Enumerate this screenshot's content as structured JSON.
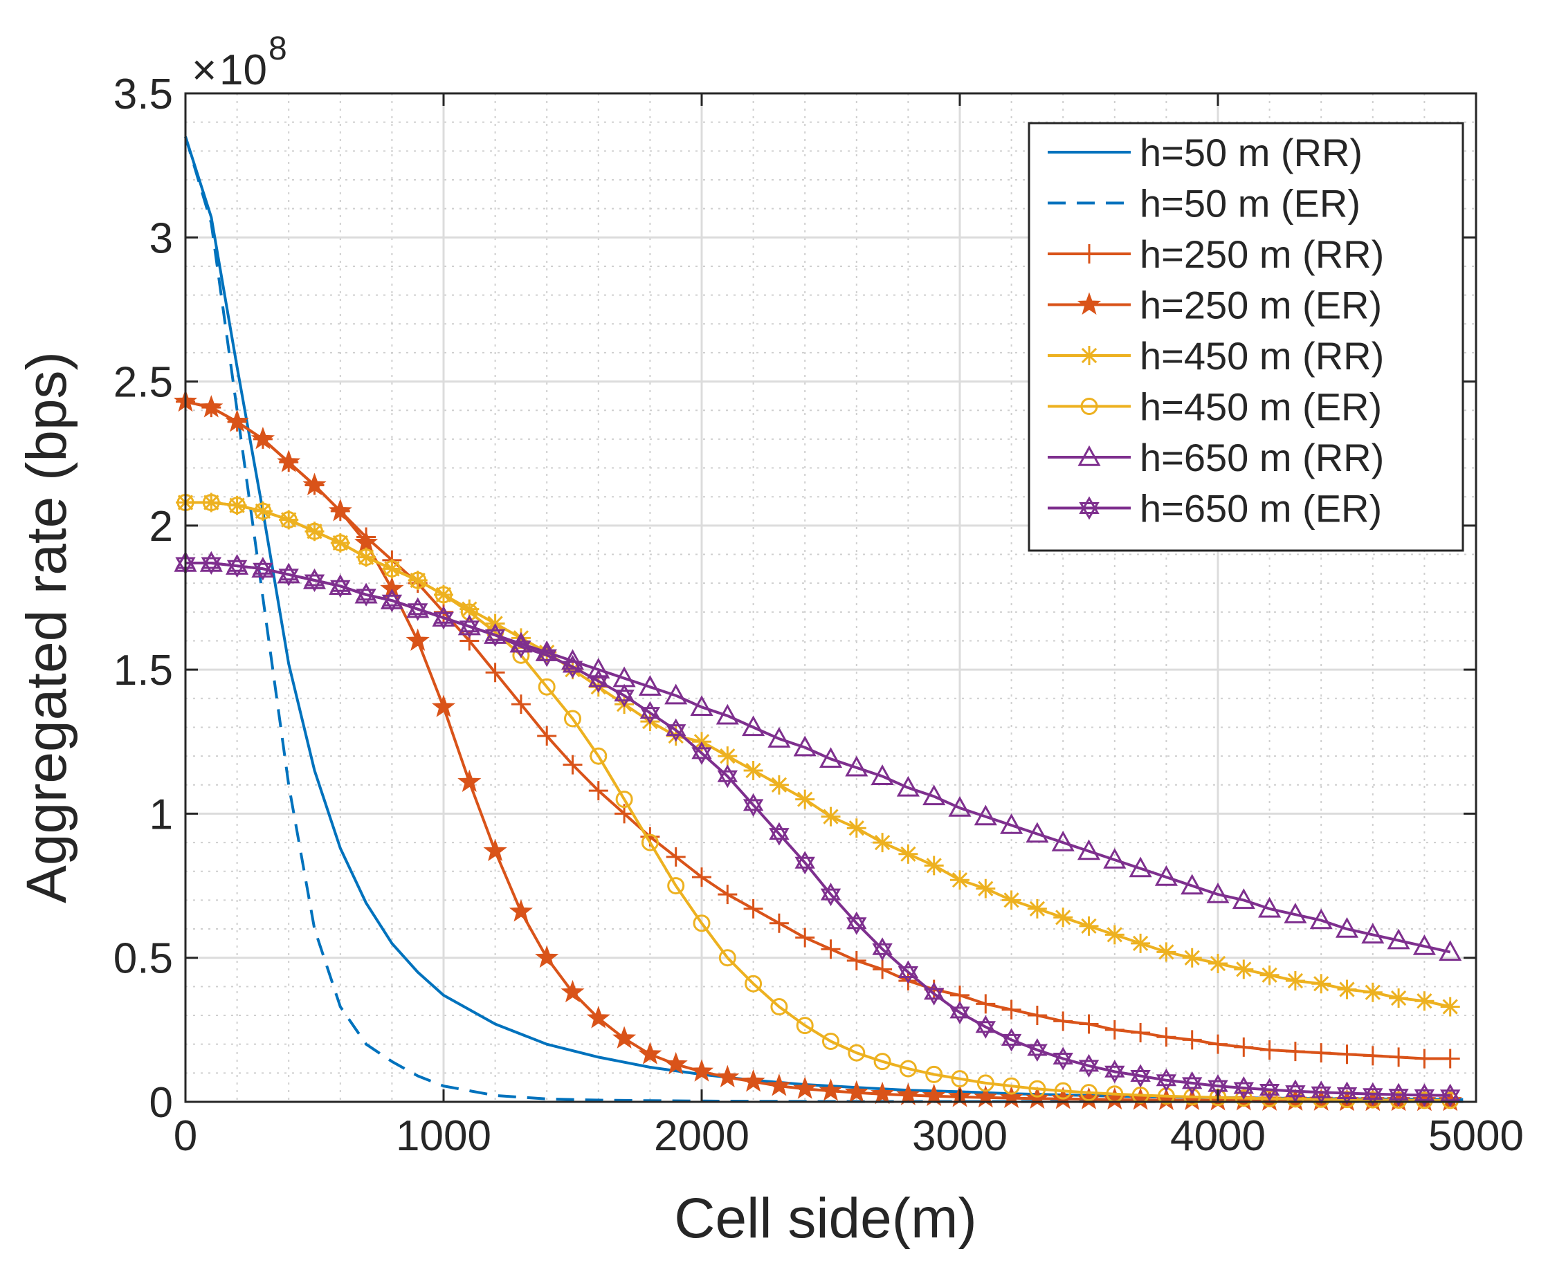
{
  "chart_data": {
    "type": "line",
    "title": "",
    "xlabel": "Cell side(m)",
    "ylabel": "Aggregated rate (bps)",
    "y_multiplier_label": {
      "times": "×",
      "base": "10",
      "exponent": "8"
    },
    "xlim": [
      0,
      5000
    ],
    "ylim": [
      0,
      3.5
    ],
    "y_scale": 100000000,
    "xticks": [
      0,
      1000,
      2000,
      3000,
      4000,
      5000
    ],
    "xtick_labels": [
      "0",
      "1000",
      "2000",
      "3000",
      "4000",
      "5000"
    ],
    "yticks": [
      0,
      0.5,
      1,
      1.5,
      2,
      2.5,
      3,
      3.5
    ],
    "ytick_labels": [
      "0",
      "0.5",
      "1",
      "1.5",
      "2",
      "2.5",
      "3",
      "3.5"
    ],
    "grid": true,
    "minor_grid": true,
    "legend_position": "top-right",
    "colors": {
      "blue": "#0072BD",
      "orange": "#D95319",
      "yellow": "#EDB120",
      "purple": "#7E2F8E",
      "axis": "#262626",
      "grid_major": "#dcdcdc",
      "grid_minor": "#cfcfcf"
    },
    "series": [
      {
        "name": "h=50 m (RR)",
        "color": "#0072BD",
        "dash": "solid",
        "marker": "none",
        "x": [
          0,
          100,
          200,
          300,
          400,
          500,
          600,
          700,
          800,
          900,
          1000,
          1200,
          1400,
          1600,
          1800,
          2000,
          2200,
          2400,
          2600,
          2800,
          3000,
          3200,
          3400,
          3600,
          3800,
          4000,
          4200,
          4400,
          4600,
          4800,
          4950
        ],
        "y": [
          3.35,
          3.07,
          2.55,
          2.05,
          1.52,
          1.15,
          0.88,
          0.69,
          0.55,
          0.45,
          0.37,
          0.27,
          0.2,
          0.155,
          0.12,
          0.095,
          0.075,
          0.06,
          0.05,
          0.04,
          0.035,
          0.028,
          0.024,
          0.02,
          0.017,
          0.015,
          0.013,
          0.011,
          0.01,
          0.009,
          0.008
        ]
      },
      {
        "name": "h=50 m (ER)",
        "color": "#0072BD",
        "dash": "dashed",
        "marker": "none",
        "x": [
          0,
          100,
          200,
          300,
          400,
          500,
          600,
          700,
          800,
          900,
          1000,
          1200,
          1400,
          1600,
          1800,
          2000,
          2200,
          2400,
          2600,
          2800,
          3000,
          3200,
          3400,
          3600,
          3800,
          4000,
          4200,
          4400,
          4600,
          4800,
          4950
        ],
        "y": [
          3.35,
          3.05,
          2.4,
          1.75,
          1.1,
          0.6,
          0.33,
          0.2,
          0.14,
          0.09,
          0.055,
          0.022,
          0.01,
          0.006,
          0.004,
          0.003,
          0.002,
          0.0015,
          0.001,
          0.001,
          0.001,
          0.001,
          0.001,
          0.001,
          0.001,
          0.001,
          0.001,
          0.001,
          0.001,
          0.001,
          0.001
        ]
      },
      {
        "name": "h=250 m (RR)",
        "color": "#D95319",
        "dash": "solid",
        "marker": "plus",
        "x": [
          0,
          100,
          200,
          300,
          400,
          500,
          600,
          700,
          800,
          900,
          1000,
          1100,
          1200,
          1300,
          1400,
          1500,
          1600,
          1700,
          1800,
          1900,
          2000,
          2100,
          2200,
          2300,
          2400,
          2500,
          2600,
          2700,
          2800,
          2900,
          3000,
          3100,
          3200,
          3300,
          3400,
          3500,
          3600,
          3700,
          3800,
          3900,
          4000,
          4100,
          4200,
          4300,
          4400,
          4500,
          4600,
          4700,
          4800,
          4900
        ],
        "y": [
          2.43,
          2.41,
          2.36,
          2.3,
          2.22,
          2.14,
          2.05,
          1.96,
          1.88,
          1.8,
          1.7,
          1.6,
          1.49,
          1.38,
          1.27,
          1.17,
          1.08,
          1.0,
          0.92,
          0.85,
          0.78,
          0.72,
          0.67,
          0.62,
          0.57,
          0.53,
          0.49,
          0.46,
          0.42,
          0.39,
          0.37,
          0.34,
          0.32,
          0.3,
          0.28,
          0.27,
          0.25,
          0.24,
          0.225,
          0.215,
          0.2,
          0.19,
          0.18,
          0.175,
          0.17,
          0.165,
          0.16,
          0.155,
          0.15,
          0.15
        ]
      },
      {
        "name": "h=250 m (ER)",
        "color": "#D95319",
        "dash": "solid",
        "marker": "star",
        "x": [
          0,
          100,
          200,
          300,
          400,
          500,
          600,
          700,
          800,
          900,
          1000,
          1100,
          1200,
          1300,
          1400,
          1500,
          1600,
          1700,
          1800,
          1900,
          2000,
          2100,
          2200,
          2300,
          2400,
          2500,
          2600,
          2700,
          2800,
          2900,
          3000,
          3100,
          3200,
          3300,
          3400,
          3500,
          3600,
          3700,
          3800,
          3900,
          4000,
          4100,
          4200,
          4300,
          4400,
          4500,
          4600,
          4700,
          4800,
          4900
        ],
        "y": [
          2.43,
          2.41,
          2.36,
          2.3,
          2.22,
          2.14,
          2.05,
          1.94,
          1.78,
          1.6,
          1.37,
          1.11,
          0.87,
          0.66,
          0.5,
          0.38,
          0.29,
          0.22,
          0.165,
          0.13,
          0.105,
          0.085,
          0.07,
          0.055,
          0.045,
          0.038,
          0.032,
          0.027,
          0.023,
          0.02,
          0.017,
          0.015,
          0.013,
          0.011,
          0.01,
          0.009,
          0.008,
          0.007,
          0.006,
          0.006,
          0.005,
          0.005,
          0.004,
          0.004,
          0.004,
          0.003,
          0.003,
          0.003,
          0.003,
          0.003
        ]
      },
      {
        "name": "h=450 m (RR)",
        "color": "#EDB120",
        "dash": "solid",
        "marker": "asterisk",
        "x": [
          0,
          100,
          200,
          300,
          400,
          500,
          600,
          700,
          800,
          900,
          1000,
          1100,
          1200,
          1300,
          1400,
          1500,
          1600,
          1700,
          1800,
          1900,
          2000,
          2100,
          2200,
          2300,
          2400,
          2500,
          2600,
          2700,
          2800,
          2900,
          3000,
          3100,
          3200,
          3300,
          3400,
          3500,
          3600,
          3700,
          3800,
          3900,
          4000,
          4100,
          4200,
          4300,
          4400,
          4500,
          4600,
          4700,
          4800,
          4900
        ],
        "y": [
          2.08,
          2.08,
          2.07,
          2.05,
          2.02,
          1.98,
          1.94,
          1.89,
          1.85,
          1.81,
          1.76,
          1.71,
          1.66,
          1.61,
          1.56,
          1.5,
          1.44,
          1.38,
          1.32,
          1.27,
          1.25,
          1.2,
          1.15,
          1.1,
          1.05,
          0.99,
          0.95,
          0.9,
          0.86,
          0.82,
          0.77,
          0.74,
          0.7,
          0.67,
          0.64,
          0.61,
          0.58,
          0.55,
          0.52,
          0.5,
          0.48,
          0.46,
          0.44,
          0.42,
          0.41,
          0.39,
          0.38,
          0.36,
          0.35,
          0.33
        ]
      },
      {
        "name": "h=450 m (ER)",
        "color": "#EDB120",
        "dash": "solid",
        "marker": "circle",
        "x": [
          0,
          100,
          200,
          300,
          400,
          500,
          600,
          700,
          800,
          900,
          1000,
          1100,
          1200,
          1300,
          1400,
          1500,
          1600,
          1700,
          1800,
          1900,
          2000,
          2100,
          2200,
          2300,
          2400,
          2500,
          2600,
          2700,
          2800,
          2900,
          3000,
          3100,
          3200,
          3300,
          3400,
          3500,
          3600,
          3700,
          3800,
          3900,
          4000,
          4100,
          4200,
          4300,
          4400,
          4500,
          4600,
          4700,
          4800,
          4900
        ],
        "y": [
          2.08,
          2.08,
          2.07,
          2.05,
          2.02,
          1.98,
          1.94,
          1.89,
          1.85,
          1.81,
          1.76,
          1.7,
          1.63,
          1.55,
          1.44,
          1.33,
          1.2,
          1.05,
          0.9,
          0.75,
          0.62,
          0.5,
          0.41,
          0.33,
          0.265,
          0.21,
          0.17,
          0.14,
          0.115,
          0.095,
          0.08,
          0.065,
          0.055,
          0.045,
          0.038,
          0.032,
          0.027,
          0.023,
          0.02,
          0.017,
          0.015,
          0.013,
          0.011,
          0.01,
          0.009,
          0.008,
          0.007,
          0.006,
          0.005,
          0.005
        ]
      },
      {
        "name": "h=650 m (RR)",
        "color": "#7E2F8E",
        "dash": "solid",
        "marker": "triangle",
        "x": [
          0,
          100,
          200,
          300,
          400,
          500,
          600,
          700,
          800,
          900,
          1000,
          1100,
          1200,
          1300,
          1400,
          1500,
          1600,
          1700,
          1800,
          1900,
          2000,
          2100,
          2200,
          2300,
          2400,
          2500,
          2600,
          2700,
          2800,
          2900,
          3000,
          3100,
          3200,
          3300,
          3400,
          3500,
          3600,
          3700,
          3800,
          3900,
          4000,
          4100,
          4200,
          4300,
          4400,
          4500,
          4600,
          4700,
          4800,
          4900
        ],
        "y": [
          1.87,
          1.87,
          1.86,
          1.85,
          1.83,
          1.81,
          1.79,
          1.76,
          1.74,
          1.71,
          1.68,
          1.65,
          1.62,
          1.59,
          1.56,
          1.53,
          1.5,
          1.47,
          1.44,
          1.41,
          1.37,
          1.34,
          1.3,
          1.26,
          1.23,
          1.19,
          1.16,
          1.13,
          1.09,
          1.06,
          1.02,
          0.99,
          0.96,
          0.93,
          0.9,
          0.87,
          0.84,
          0.81,
          0.78,
          0.75,
          0.72,
          0.7,
          0.67,
          0.65,
          0.63,
          0.6,
          0.58,
          0.56,
          0.54,
          0.52
        ]
      },
      {
        "name": "h=650 m (ER)",
        "color": "#7E2F8E",
        "dash": "solid",
        "marker": "hexagram",
        "x": [
          0,
          100,
          200,
          300,
          400,
          500,
          600,
          700,
          800,
          900,
          1000,
          1100,
          1200,
          1300,
          1400,
          1500,
          1600,
          1700,
          1800,
          1900,
          2000,
          2100,
          2200,
          2300,
          2400,
          2500,
          2600,
          2700,
          2800,
          2900,
          3000,
          3100,
          3200,
          3300,
          3400,
          3500,
          3600,
          3700,
          3800,
          3900,
          4000,
          4100,
          4200,
          4300,
          4400,
          4500,
          4600,
          4700,
          4800,
          4900
        ],
        "y": [
          1.87,
          1.87,
          1.86,
          1.85,
          1.83,
          1.81,
          1.79,
          1.76,
          1.74,
          1.71,
          1.68,
          1.65,
          1.62,
          1.58,
          1.55,
          1.51,
          1.46,
          1.41,
          1.35,
          1.29,
          1.21,
          1.13,
          1.03,
          0.93,
          0.83,
          0.72,
          0.62,
          0.53,
          0.45,
          0.375,
          0.31,
          0.26,
          0.215,
          0.18,
          0.15,
          0.125,
          0.105,
          0.09,
          0.075,
          0.065,
          0.055,
          0.048,
          0.042,
          0.037,
          0.033,
          0.03,
          0.027,
          0.025,
          0.023,
          0.022
        ]
      }
    ]
  }
}
